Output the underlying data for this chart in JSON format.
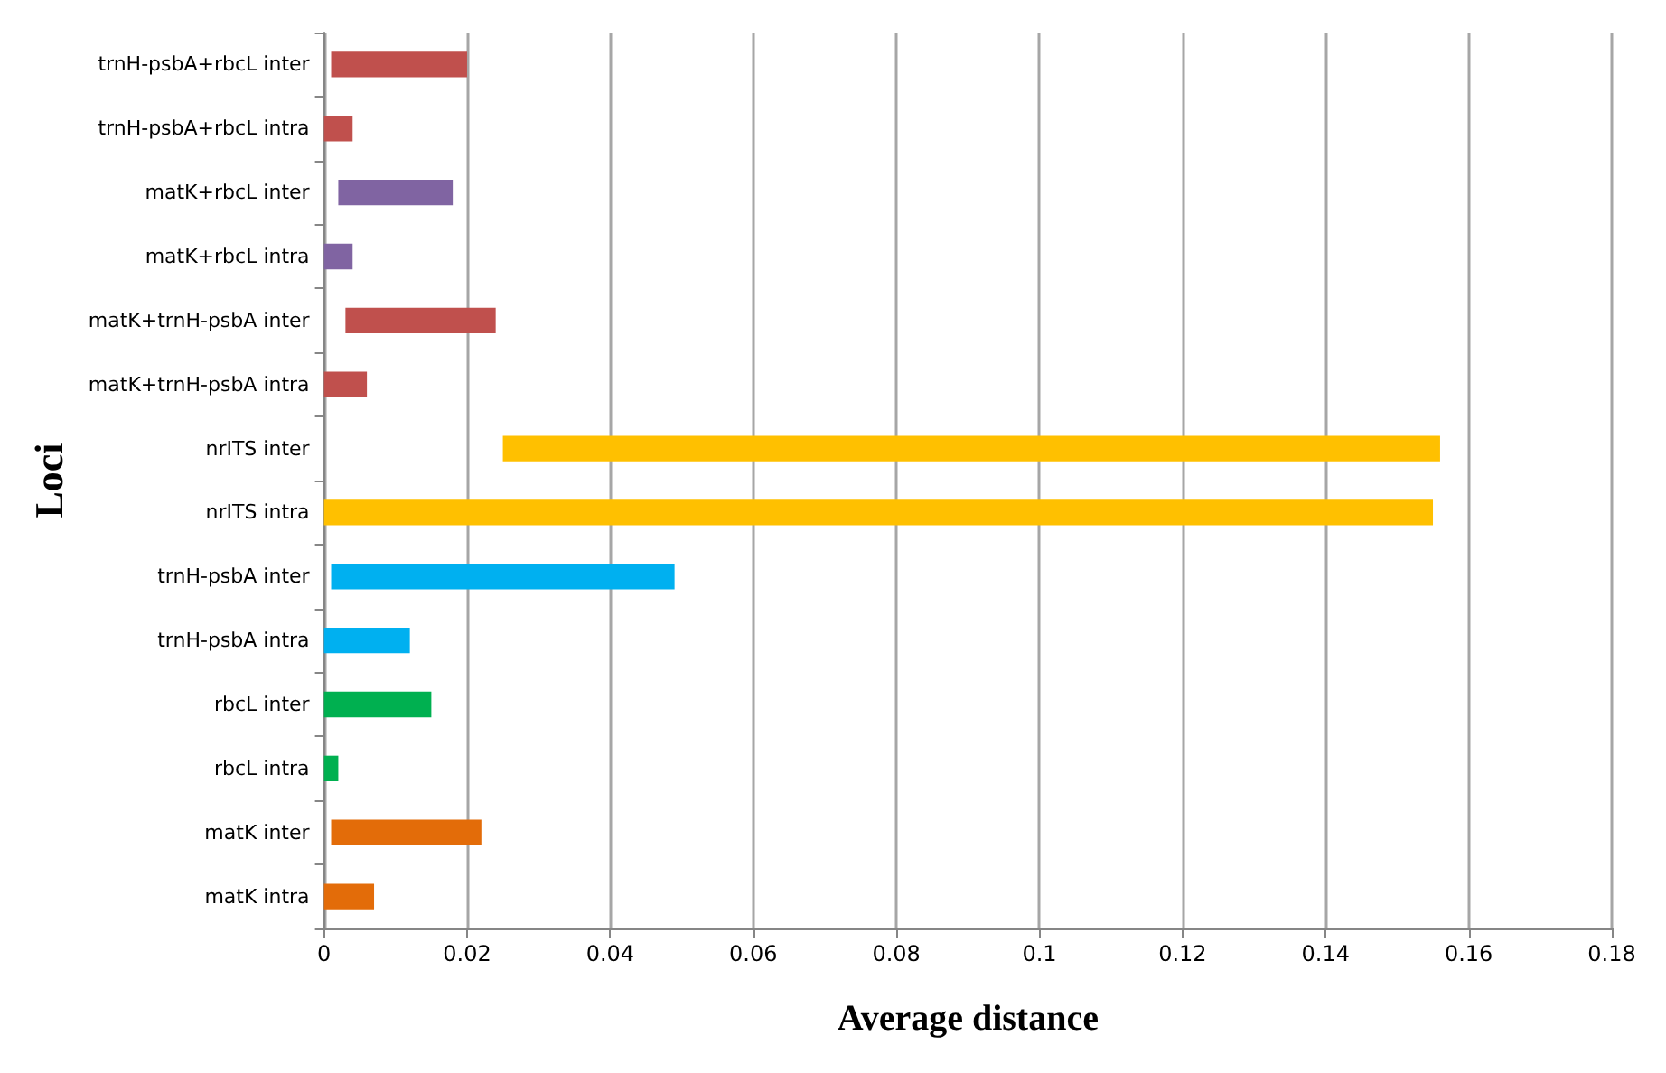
{
  "chart_data": {
    "type": "bar",
    "orientation": "horizontal",
    "xlabel": "Average distance",
    "ylabel": "Loci",
    "categories": [
      "trnH-psbA+rbcL inter",
      "trnH-psbA+rbcL intra",
      "matK+rbcL inter",
      "matK+rbcL intra",
      "matK+trnH-psbA inter",
      "matK+trnH-psbA intra",
      "nrITS inter",
      "nrITS intra",
      "trnH-psbA inter",
      "trnH-psbA intra",
      "rbcL inter",
      "rbcL intra",
      "matK inter",
      "matK intra"
    ],
    "values": [
      0.019,
      0.004,
      0.016,
      0.004,
      0.021,
      0.006,
      0.131,
      0.155,
      0.048,
      0.012,
      0.015,
      0.002,
      0.021,
      0.007
    ],
    "base": [
      0.001,
      0,
      0.002,
      0,
      0.003,
      0,
      0.025,
      0,
      0.001,
      0,
      0,
      0,
      0.001,
      0
    ],
    "colors": [
      "#c0504d",
      "#c0504d",
      "#8064a2",
      "#8064a2",
      "#c0504d",
      "#c0504d",
      "#ffc000",
      "#ffc000",
      "#00b0f0",
      "#00b0f0",
      "#00b050",
      "#00b050",
      "#e36c09",
      "#e36c09"
    ],
    "xlim": [
      0,
      0.18
    ],
    "xticks": [
      0,
      0.02,
      0.04,
      0.06,
      0.08,
      0.1,
      0.12,
      0.14,
      0.16,
      0.18
    ],
    "grid": "x"
  }
}
